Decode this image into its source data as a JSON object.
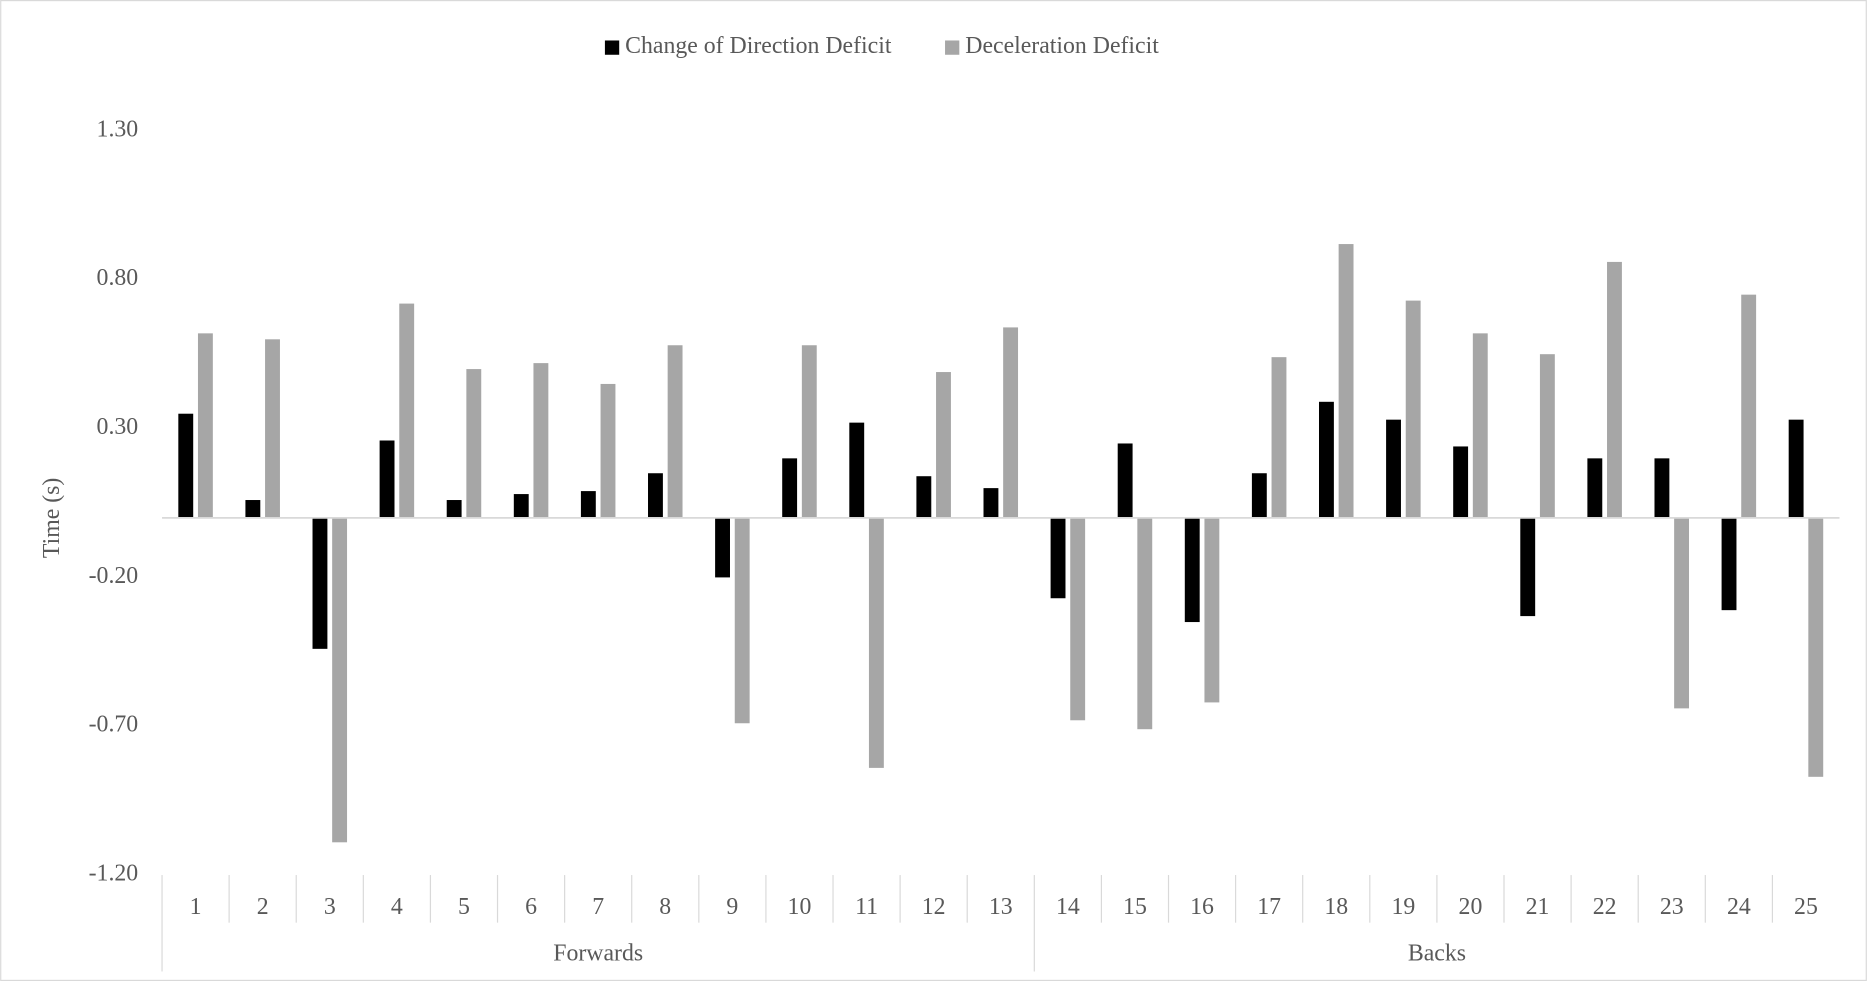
{
  "chart_data": {
    "type": "bar",
    "y_label": "Time (s)",
    "groups": [
      {
        "name": "Forwards",
        "categories": [
          "1",
          "2",
          "3",
          "4",
          "5",
          "6",
          "7",
          "8",
          "9",
          "10",
          "11",
          "12",
          "13"
        ]
      },
      {
        "name": "Backs",
        "categories": [
          "14",
          "15",
          "16",
          "17",
          "18",
          "19",
          "20",
          "21",
          "22",
          "23",
          "24",
          "25"
        ]
      }
    ],
    "series": [
      {
        "name": "Change of Direction Deficit",
        "color": "#000000",
        "values": [
          0.35,
          0.06,
          -0.44,
          0.26,
          0.06,
          0.08,
          0.09,
          0.15,
          -0.2,
          0.2,
          0.32,
          0.14,
          0.1,
          -0.27,
          0.25,
          -0.35,
          0.15,
          0.39,
          0.33,
          0.24,
          -0.33,
          0.2,
          0.2,
          -0.31,
          0.33
        ]
      },
      {
        "name": "Deceleration Deficit",
        "color": "#a6a6a6",
        "values": [
          0.62,
          0.6,
          -1.09,
          0.72,
          0.5,
          0.52,
          0.45,
          0.58,
          -0.69,
          0.58,
          -0.84,
          0.49,
          0.64,
          -0.68,
          -0.71,
          -0.62,
          0.54,
          0.92,
          0.73,
          0.62,
          0.55,
          0.86,
          -0.64,
          0.75,
          -0.87
        ]
      }
    ],
    "ylim": [
      -1.2,
      1.3
    ],
    "yticks": [
      {
        "value": -1.2,
        "label": "-1.20"
      },
      {
        "value": -0.7,
        "label": "-0.70"
      },
      {
        "value": -0.2,
        "label": "-0.20"
      },
      {
        "value": 0.3,
        "label": "0.30"
      },
      {
        "value": 0.8,
        "label": "0.80"
      },
      {
        "value": 1.3,
        "label": "1.30"
      }
    ],
    "legend": "top"
  }
}
